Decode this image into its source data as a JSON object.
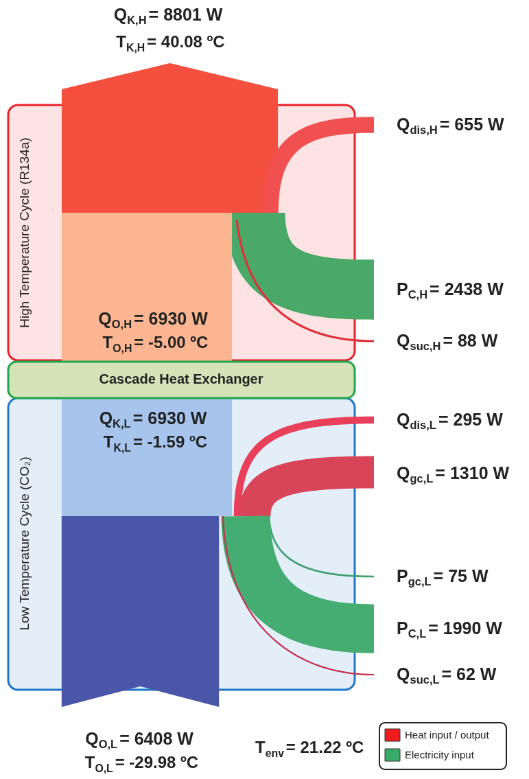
{
  "chart_data": {
    "type": "other",
    "categories": [
      "Q$_{K,H}$",
      "Q$_{dis,H}$",
      "P$_{C,H}$",
      "Q$_{suc,H}$",
      "Q$_{O,H}$",
      "Q$_{K,L}$",
      "Q$_{dis,L}$",
      "Q$_{gc,L}$",
      "P$_{gc,L}$",
      "P$_{C,L}$",
      "Q$_{suc,L}$",
      "Q$_{O,L}$"
    ],
    "series": [
      {
        "name": "Heat input / output",
        "color": "#ee1c1c",
        "values": [
          8801,
          655,
          null,
          88,
          6930,
          6930,
          295,
          1310,
          null,
          null,
          62,
          6408
        ],
        "value_labels": [
          "= 8801 W",
          "= 655 W",
          null,
          "= 88 W",
          "= 6930 W",
          "= 6930 W",
          "= 295 W",
          "= 1310 W",
          null,
          null,
          "= 62 W",
          "= 6408 W"
        ],
        "colors": [
          "#f5503f",
          "#f05050",
          null,
          "#e0303a",
          "#fbb590",
          "#a7c4ec",
          "#e8405a",
          "#d84558",
          null,
          null,
          "#c83050",
          "#4a56a8"
        ]
      },
      {
        "name": "Electricity input",
        "color": "#3aaa6a",
        "values": [
          null,
          null,
          2438,
          null,
          null,
          null,
          null,
          null,
          75,
          1990,
          null,
          null
        ],
        "value_labels": [
          null,
          null,
          "= 2438 W",
          null,
          null,
          null,
          null,
          null,
          "= 75 W",
          "= 1990 W",
          null,
          null
        ],
        "colors": [
          null,
          null,
          "#4aa868",
          null,
          null,
          null,
          null,
          null,
          "#40a070",
          "#45ad72",
          null,
          null
        ]
      }
    ],
    "annotations": [
      "T$_{K,H}$= 40.08 ºC",
      "T$_{O,H}$= -5.00 ºC",
      "T$_{K,L}$= -1.59 ºC",
      "T$_{O,L}$= -29.98 ºC",
      "T$_{env}$= 21.22 ºC",
      "High Temperature Cycle (R134a)",
      "Cascade Heat Exchanger",
      "Low Temperature Cycle (CO₂)"
    ],
    "legend": "bottom right"
  }
}
